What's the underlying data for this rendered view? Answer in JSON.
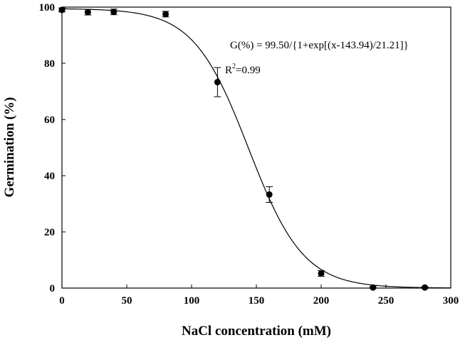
{
  "chart_data": {
    "type": "scatter",
    "title": "",
    "xlabel": "NaCl concentration (mM)",
    "ylabel": "Germination (%)",
    "xlim": [
      0,
      300
    ],
    "ylim": [
      0,
      100
    ],
    "xticks": [
      0,
      50,
      100,
      150,
      200,
      250,
      300
    ],
    "yticks": [
      0,
      20,
      40,
      60,
      80,
      100
    ],
    "grid": false,
    "legend": "none",
    "series": [
      {
        "x": [
          0,
          20,
          40,
          80,
          120,
          160,
          200,
          240,
          280
        ],
        "y": [
          99,
          98.2,
          98.3,
          97.5,
          73.3,
          33.3,
          5.2,
          0.2,
          0.2
        ],
        "error": [
          0.7,
          1.0,
          1.0,
          1.0,
          5.2,
          2.8,
          1.0,
          0.3,
          0.3
        ]
      }
    ],
    "fit": {
      "equation": "G(%) = 99.50/{1+exp[(x-143.94)/21.21]}",
      "r2_prefix": "R",
      "r2_sup": "2",
      "r2_value": "=0.99",
      "a": 99.5,
      "x0": 143.94,
      "b": 21.21
    },
    "colors": {
      "marker": "#000000",
      "line": "#000000",
      "background": "#ffffff"
    }
  }
}
